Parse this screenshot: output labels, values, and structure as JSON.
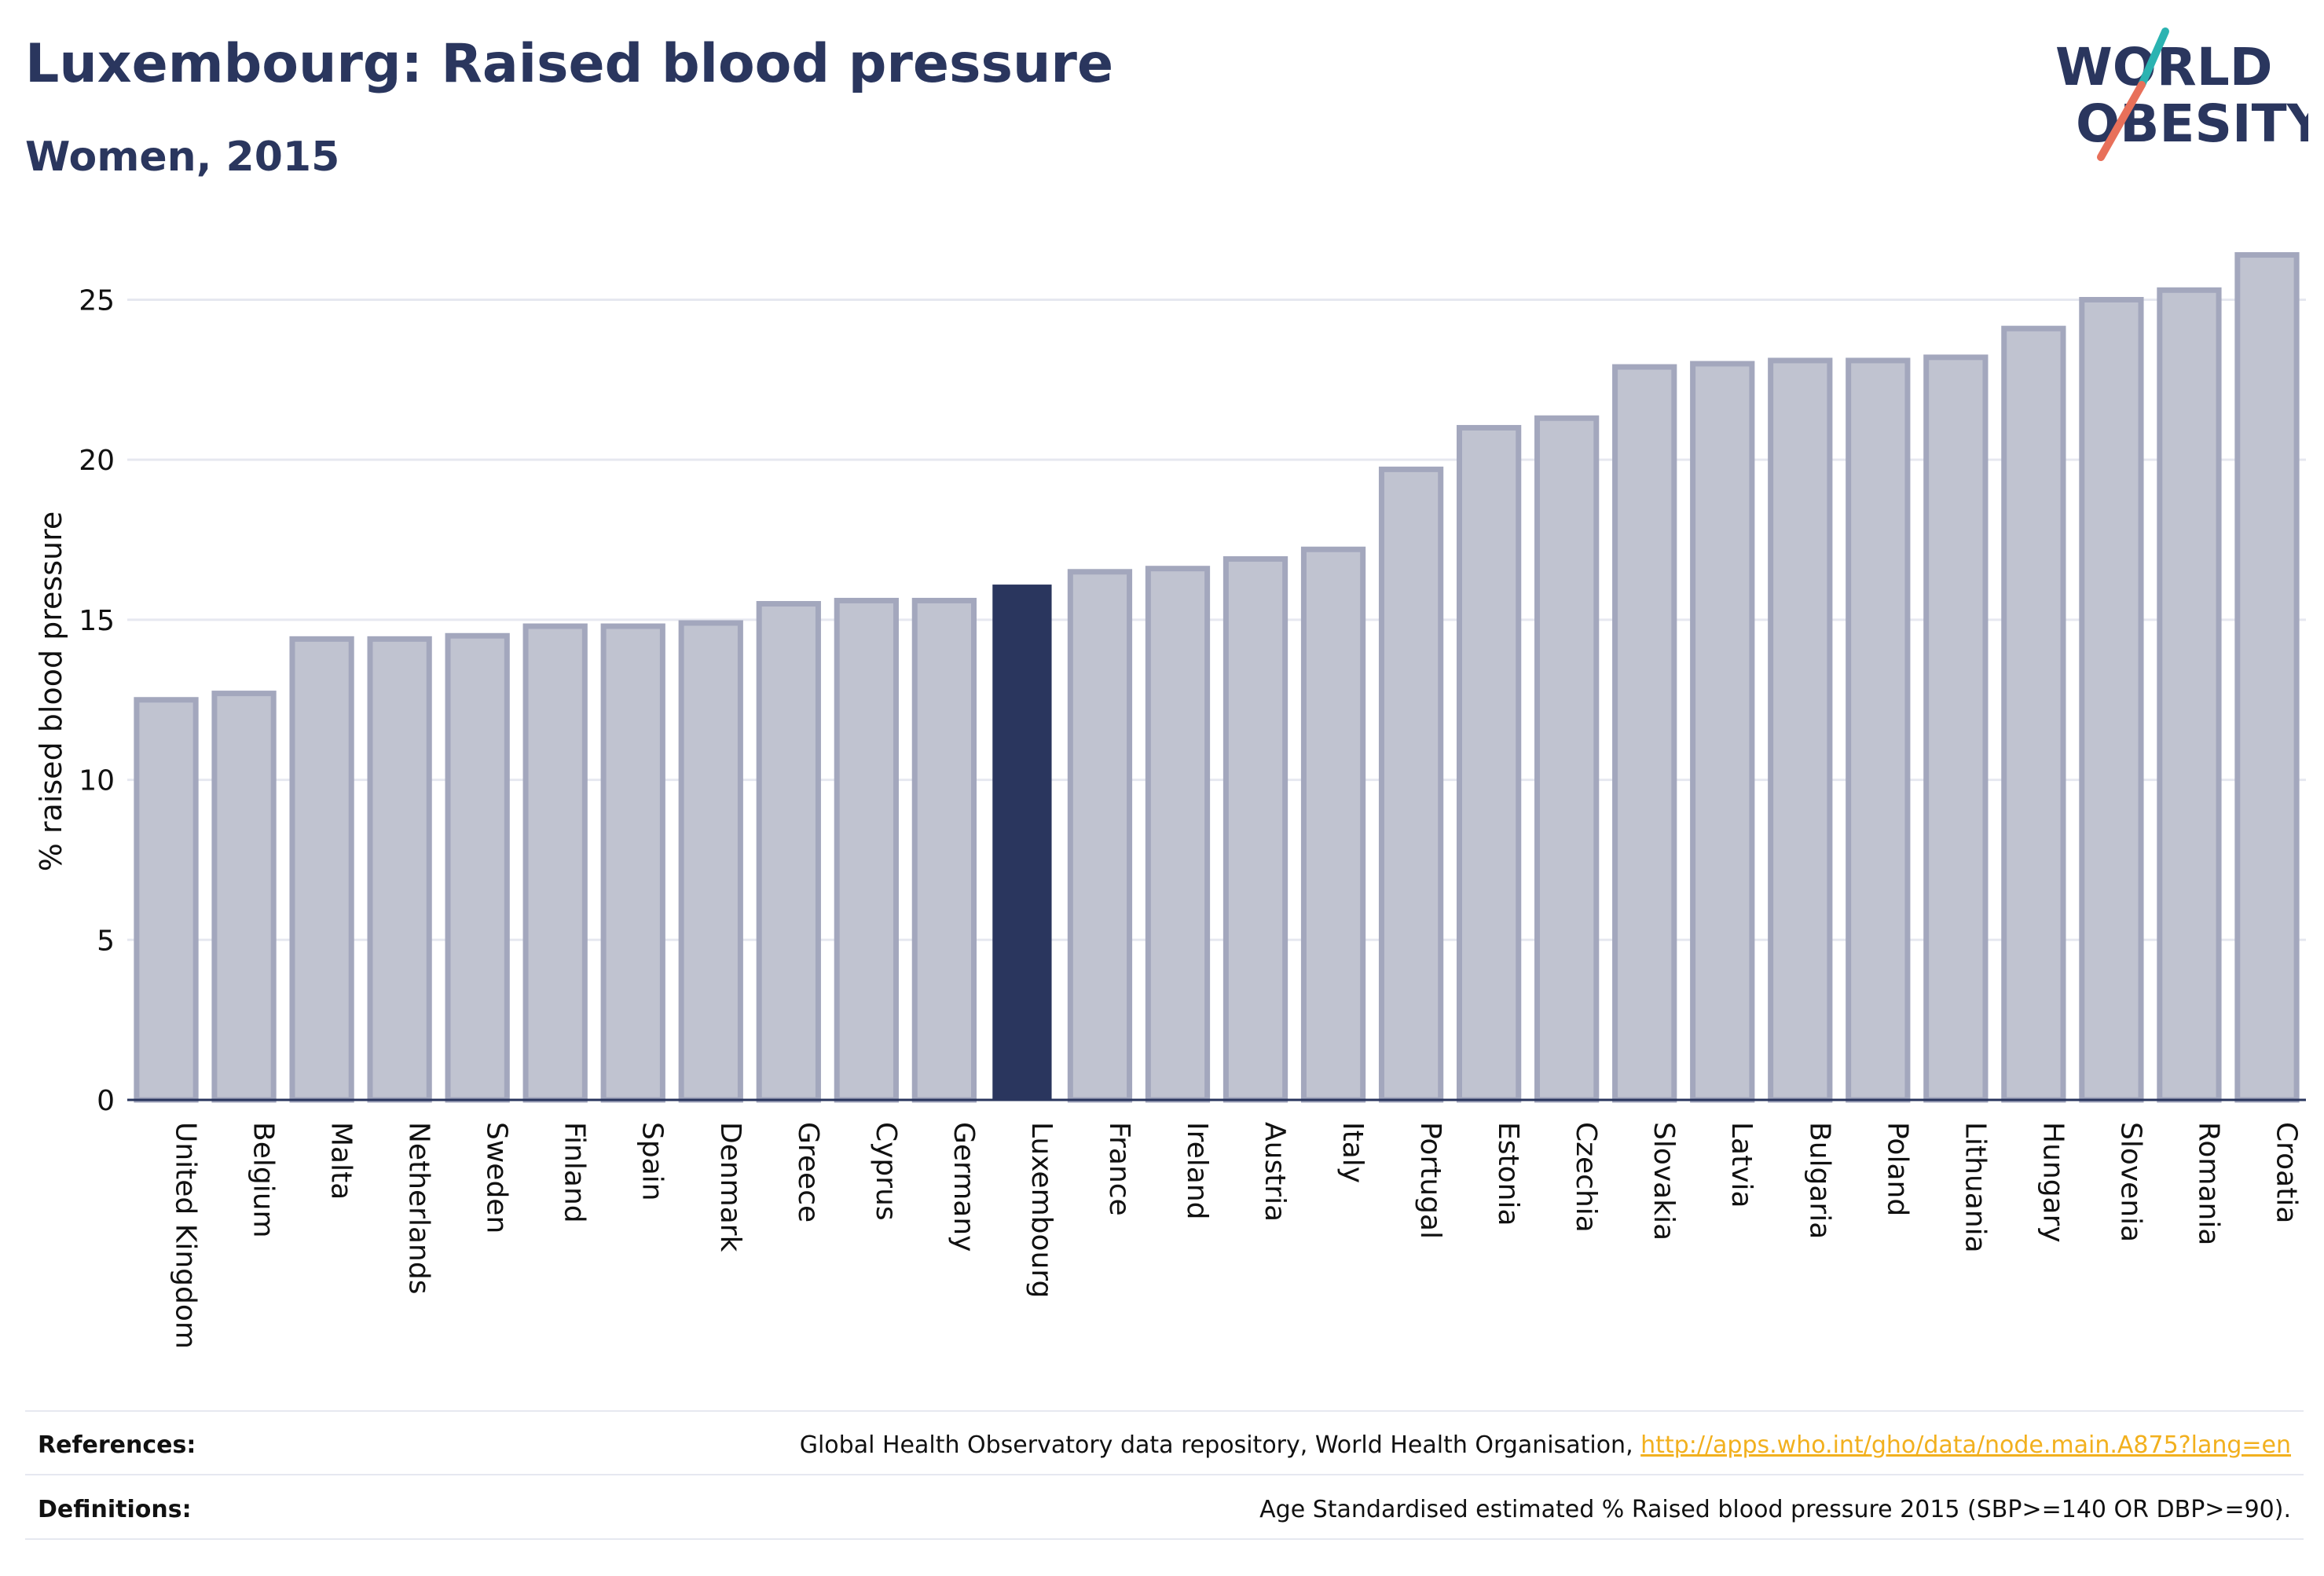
{
  "title": "Luxembourg: Raised blood pressure",
  "subtitle": "Women, 2015",
  "logo": {
    "line1": "WORLD",
    "line2": "OBESITY"
  },
  "colors": {
    "highlight": "#2a365e",
    "bar_fill": "#c0c3d0",
    "bar_stroke": "#a3a7bd",
    "accent_teal": "#2bb3b1",
    "accent_coral": "#e8705a",
    "link": "#f2b01e"
  },
  "chart_data": {
    "type": "bar",
    "ylabel": "% raised blood pressure",
    "ylim": [
      0,
      27
    ],
    "yticks": [
      0,
      5,
      10,
      15,
      20,
      25
    ],
    "grid": true,
    "highlight": "Luxembourg",
    "categories": [
      "United Kingdom",
      "Belgium",
      "Malta",
      "Netherlands",
      "Sweden",
      "Finland",
      "Spain",
      "Denmark",
      "Greece",
      "Cyprus",
      "Germany",
      "Luxembourg",
      "France",
      "Ireland",
      "Austria",
      "Italy",
      "Portugal",
      "Estonia",
      "Czechia",
      "Slovakia",
      "Latvia",
      "Bulgaria",
      "Poland",
      "Lithuania",
      "Hungary",
      "Slovenia",
      "Romania",
      "Croatia"
    ],
    "values": [
      12.5,
      12.7,
      14.4,
      14.4,
      14.5,
      14.8,
      14.8,
      14.9,
      15.5,
      15.6,
      15.6,
      16.1,
      16.5,
      16.6,
      16.9,
      17.2,
      19.7,
      21.0,
      21.3,
      22.9,
      23.0,
      23.1,
      23.1,
      23.2,
      24.1,
      25.0,
      25.3,
      26.4
    ]
  },
  "references": {
    "label": "References:",
    "text": "Global Health Observatory data repository, World Health Organisation, ",
    "link": "http://apps.who.int/gho/data/node.main.A875?lang=en"
  },
  "definitions": {
    "label": "Definitions:",
    "text": "Age Standardised estimated % Raised blood pressure 2015 (SBP>=140 OR DBP>=90)."
  }
}
